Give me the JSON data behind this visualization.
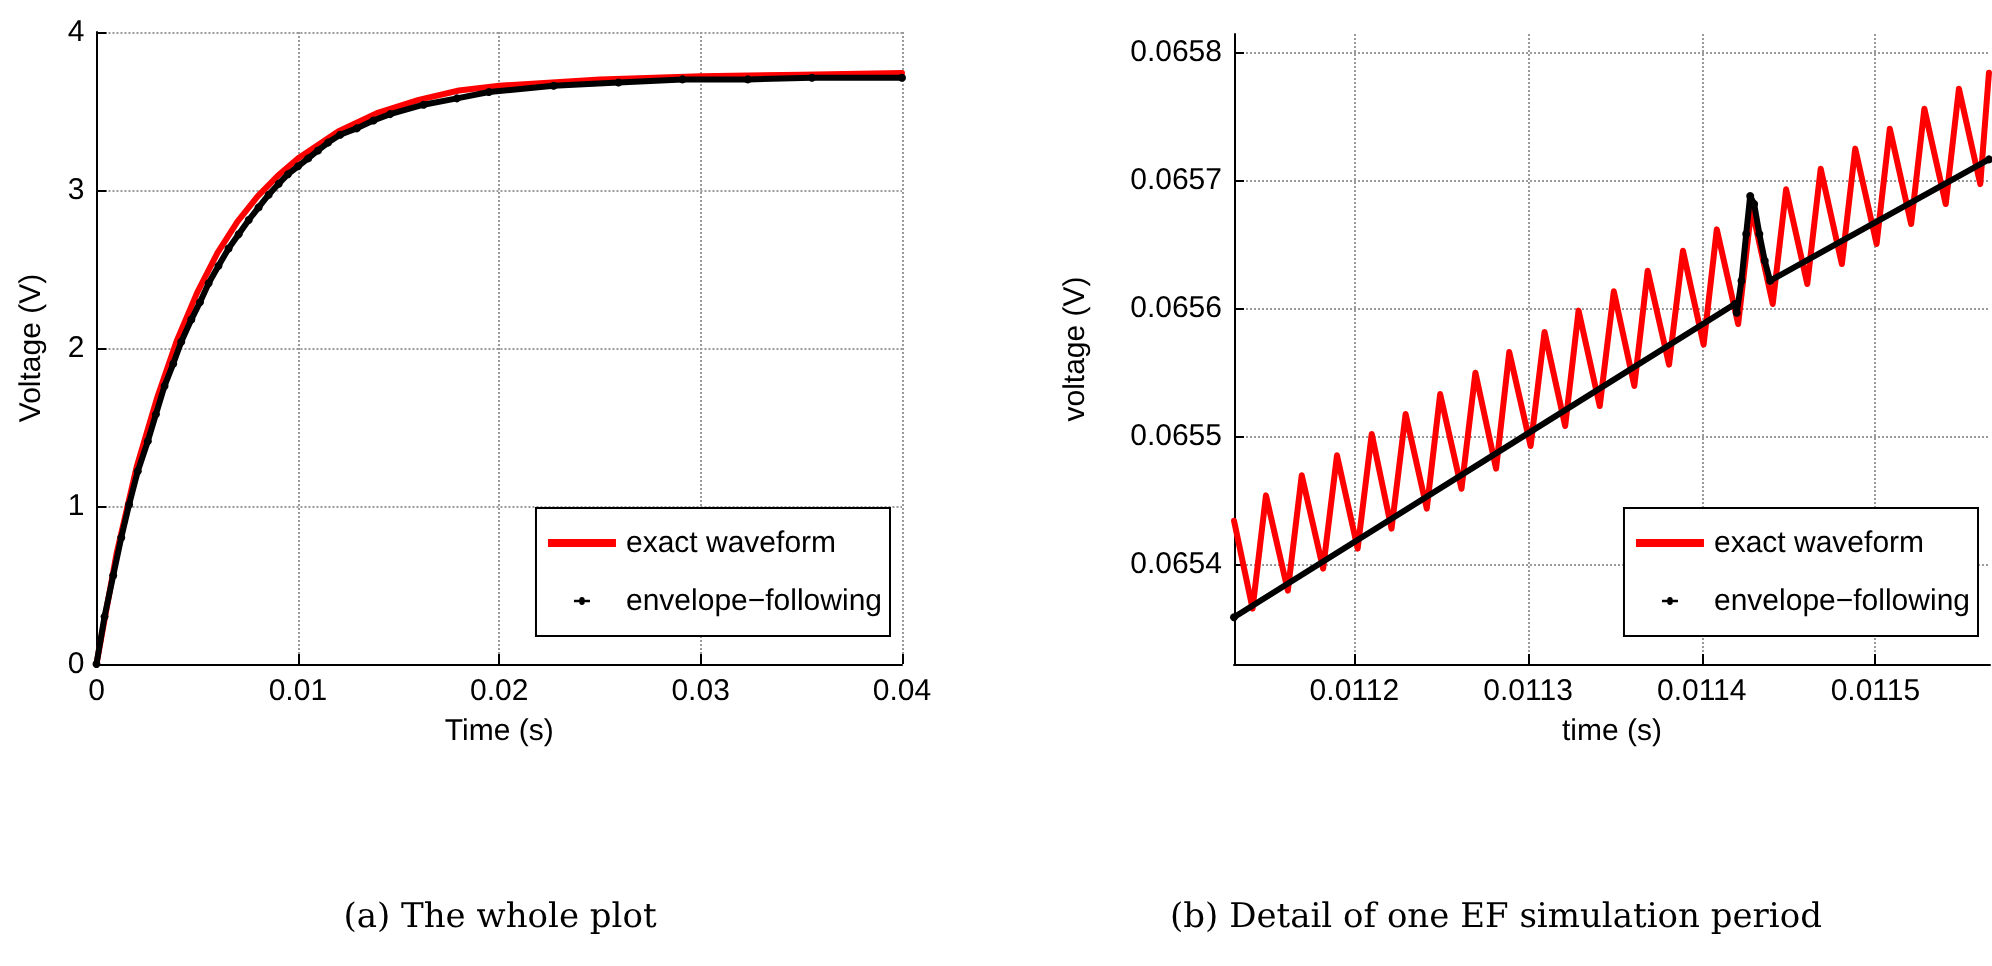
{
  "chart_data": [
    {
      "type": "line",
      "xlabel": "Time (s)",
      "ylabel": "Voltage (V)",
      "annotations": [
        "(a) The whole plot"
      ],
      "xlim": [
        0,
        0.04
      ],
      "xticks": [
        0,
        0.01,
        0.02,
        0.03,
        0.04
      ],
      "ylim": [
        0,
        4
      ],
      "yticks": [
        0,
        1,
        2,
        3,
        4
      ],
      "grid": true,
      "legend": "bottom right",
      "series": [
        {
          "name": "exact waveform",
          "color": "#ff0000",
          "marker": "none",
          "x": [
            0,
            0.001,
            0.002,
            0.003,
            0.004,
            0.005,
            0.006,
            0.007,
            0.008,
            0.009,
            0.01,
            0.012,
            0.014,
            0.016,
            0.018,
            0.02,
            0.025,
            0.03,
            0.035,
            0.04
          ],
          "values": [
            0,
            0.7,
            1.25,
            1.68,
            2.05,
            2.35,
            2.6,
            2.8,
            2.96,
            3.09,
            3.2,
            3.37,
            3.49,
            3.57,
            3.63,
            3.66,
            3.7,
            3.72,
            3.73,
            3.74
          ]
        },
        {
          "name": "envelope−following",
          "color": "#000000",
          "marker": "circle",
          "x": [
            0,
            0.0004,
            0.00083,
            0.00123,
            0.00162,
            0.00205,
            0.00255,
            0.00295,
            0.00338,
            0.00381,
            0.00421,
            0.00471,
            0.00514,
            0.00557,
            0.00606,
            0.00656,
            0.00706,
            0.00756,
            0.00805,
            0.00855,
            0.00905,
            0.00951,
            0.01001,
            0.01051,
            0.011,
            0.0115,
            0.0121,
            0.01292,
            0.01375,
            0.01458,
            0.01624,
            0.0179,
            0.01949,
            0.0227,
            0.02592,
            0.0291,
            0.03234,
            0.03553,
            0.04
          ],
          "values": [
            0,
            0.3,
            0.56,
            0.8,
            1.01,
            1.22,
            1.41,
            1.58,
            1.76,
            1.9,
            2.04,
            2.18,
            2.29,
            2.41,
            2.52,
            2.63,
            2.72,
            2.81,
            2.89,
            2.97,
            3.04,
            3.1,
            3.15,
            3.2,
            3.25,
            3.3,
            3.35,
            3.39,
            3.44,
            3.48,
            3.54,
            3.58,
            3.62,
            3.66,
            3.68,
            3.7,
            3.7,
            3.71,
            3.71
          ]
        }
      ]
    },
    {
      "type": "line",
      "xlabel": "time (s)",
      "ylabel": "voltage (V)",
      "annotations": [
        "(b) Detail of one EF simulation period"
      ],
      "xlim": [
        0.0111307,
        0.011566
      ],
      "xticks": [
        0.0112,
        0.0113,
        0.0114,
        0.0115
      ],
      "ylim": [
        0.0653217,
        0.0658141
      ],
      "yticks": [
        0.0654,
        0.0655,
        0.0656,
        0.0657,
        0.0658
      ],
      "grid": true,
      "legend": "bottom right",
      "series": [
        {
          "name": "exact waveform",
          "color": "#ff0000",
          "marker": "none",
          "x": [
            0.0111307,
            0.0111414,
            0.0111491,
            0.0111617,
            0.0111697,
            0.011182,
            0.01119,
            0.0112019,
            0.01121,
            0.0112214,
            0.0112295,
            0.0112417,
            0.0112494,
            0.0112617,
            0.0112697,
            0.0112816,
            0.0112892,
            0.0113015,
            0.0113095,
            0.0113214,
            0.0113291,
            0.0113413,
            0.0113494,
            0.0113612,
            0.0113689,
            0.0113812,
            0.0113892,
            0.0114011,
            0.0114087,
            0.011421,
            0.0114287,
            0.0114409,
            0.0114486,
            0.0114608,
            0.0114685,
            0.0114807,
            0.0114884,
            0.0115007,
            0.0115083,
            0.0115206,
            0.0115282,
            0.0115405,
            0.0115481,
            0.0115604,
            0.0115654
          ],
          "values": [
            0.0654337,
            0.065365,
            0.0654535,
            0.065379,
            0.0654692,
            0.0653962,
            0.0654848,
            0.0654119,
            0.0655015,
            0.0654275,
            0.0655171,
            0.0654431,
            0.0655327,
            0.0654587,
            0.0655494,
            0.0654744,
            0.0655655,
            0.0654921,
            0.0655812,
            0.0655077,
            0.0655979,
            0.0655233,
            0.065613,
            0.065539,
            0.0656291,
            0.0655557,
            0.0656447,
            0.0655713,
            0.0656614,
            0.0655874,
            0.0656786,
            0.0656031,
            0.0656927,
            0.0656187,
            0.0657088,
            0.0656343,
            0.0657245,
            0.06565,
            0.0657401,
            0.0656656,
            0.0657557,
            0.0656812,
            0.0657713,
            0.0656968,
            0.0657838
          ]
        },
        {
          "name": "envelope−following",
          "color": "#000000",
          "marker": "circle",
          "x": [
            0.0111307,
            0.0114191,
            0.0114202,
            0.0114229,
            0.0114256,
            0.0114279,
            0.0114302,
            0.0114332,
            0.0114363,
            0.0114394,
            0.0115654
          ],
          "values": [
            0.0653582,
            0.0656031,
            0.0655963,
            0.0656213,
            0.0656578,
            0.0656875,
            0.0656812,
            0.0656578,
            0.0656369,
            0.0656213,
            0.0657161
          ]
        }
      ]
    }
  ]
}
